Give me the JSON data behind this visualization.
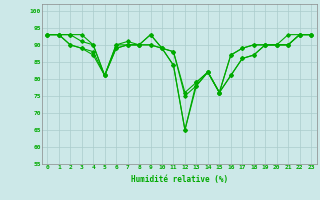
{
  "xlabel": "Humidité relative (%)",
  "background_color": "#cce8e8",
  "grid_color": "#aacccc",
  "line_color": "#00aa00",
  "xlim": [
    -0.5,
    23.5
  ],
  "ylim": [
    55,
    102
  ],
  "yticks": [
    55,
    60,
    65,
    70,
    75,
    80,
    85,
    90,
    95,
    100
  ],
  "xticks": [
    0,
    1,
    2,
    3,
    4,
    5,
    6,
    7,
    8,
    9,
    10,
    11,
    12,
    13,
    14,
    15,
    16,
    17,
    18,
    19,
    20,
    21,
    22,
    23
  ],
  "series": [
    [
      93,
      93,
      93,
      93,
      90,
      81,
      90,
      90,
      90,
      93,
      89,
      88,
      76,
      79,
      82,
      76,
      87,
      89,
      90,
      90,
      90,
      93,
      93,
      93
    ],
    [
      93,
      93,
      93,
      91,
      90,
      81,
      90,
      91,
      90,
      93,
      89,
      88,
      75,
      78,
      82,
      76,
      87,
      89,
      90,
      90,
      90,
      90,
      93,
      93
    ],
    [
      93,
      93,
      90,
      89,
      88,
      81,
      89,
      90,
      90,
      90,
      89,
      84,
      65,
      79,
      82,
      76,
      81,
      86,
      87,
      90,
      90,
      90,
      93,
      93
    ],
    [
      93,
      93,
      90,
      89,
      87,
      81,
      89,
      90,
      90,
      90,
      89,
      84,
      65,
      78,
      82,
      76,
      81,
      86,
      87,
      90,
      90,
      90,
      93,
      93
    ]
  ]
}
